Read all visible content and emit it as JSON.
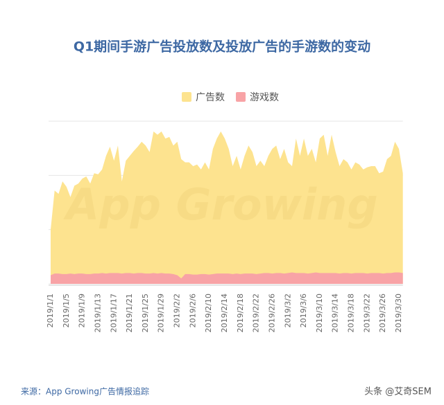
{
  "chart_data": {
    "type": "area",
    "title": "Q1期间手游广告投放数及投放广告的手游数的变动",
    "watermark": "App Growing",
    "source": "来源：App Growing广告情报追踪",
    "credit": "头条 @艾奇SEM",
    "categories": [
      "2019/1/1",
      null,
      null,
      null,
      "2019/1/5",
      null,
      null,
      null,
      "2019/1/9",
      null,
      null,
      null,
      "2019/1/13",
      null,
      null,
      null,
      "2019/1/17",
      null,
      null,
      null,
      "2019/1/21",
      null,
      null,
      null,
      "2019/1/25",
      null,
      null,
      null,
      "2019/1/29",
      null,
      null,
      null,
      "2019/2/2",
      null,
      null,
      null,
      "2019/2/6",
      null,
      null,
      null,
      "2019/2/10",
      null,
      null,
      null,
      "2019/2/14",
      null,
      null,
      null,
      "2019/2/18",
      null,
      null,
      null,
      "2019/2/22",
      null,
      null,
      null,
      "2019/2/26",
      null,
      null,
      null,
      "2019/3/2",
      null,
      null,
      null,
      "2019/3/6",
      null,
      null,
      null,
      "2019/3/10",
      null,
      null,
      null,
      "2019/3/14",
      null,
      null,
      null,
      "2019/3/18",
      null,
      null,
      null,
      "2019/3/22",
      null,
      null,
      null,
      "2019/3/26",
      null,
      null,
      null,
      "2019/3/30",
      null
    ],
    "series": [
      {
        "name": "广告数",
        "color": "#fde38f",
        "values": [
          100,
          172,
          166,
          189,
          179,
          160,
          181,
          185,
          194,
          198,
          185,
          204,
          202,
          211,
          236,
          253,
          227,
          255,
          189,
          227,
          236,
          245,
          253,
          262,
          255,
          243,
          281,
          275,
          281,
          268,
          271,
          255,
          262,
          230,
          224,
          224,
          217,
          220,
          211,
          224,
          211,
          249,
          268,
          281,
          268,
          249,
          217,
          236,
          211,
          236,
          255,
          243,
          217,
          227,
          217,
          236,
          249,
          255,
          230,
          249,
          224,
          217,
          268,
          236,
          268,
          236,
          249,
          224,
          268,
          275,
          236,
          275,
          243,
          217,
          230,
          224,
          211,
          224,
          220,
          211,
          215,
          217,
          217,
          204,
          207,
          230,
          236,
          262,
          249,
          204
        ]
      },
      {
        "name": "游戏数",
        "color": "#f8a3a6",
        "values": [
          16,
          19,
          19,
          18,
          18,
          19,
          18,
          19,
          19,
          18,
          18,
          19,
          19,
          20,
          19,
          20,
          20,
          20,
          19,
          20,
          20,
          19,
          20,
          20,
          19,
          19,
          20,
          19,
          20,
          19,
          19,
          18,
          16,
          10,
          18,
          18,
          17,
          17,
          18,
          18,
          17,
          18,
          19,
          19,
          19,
          19,
          18,
          19,
          18,
          19,
          19,
          19,
          18,
          19,
          20,
          20,
          19,
          20,
          20,
          19,
          20,
          21,
          20,
          20,
          20,
          19,
          20,
          21,
          20,
          20,
          20,
          20,
          20,
          19,
          20,
          20,
          19,
          20,
          20,
          20,
          19,
          20,
          20,
          20,
          19,
          20,
          20,
          21,
          21,
          20
        ]
      }
    ],
    "ylim": [
      0,
      300
    ],
    "yticks": [
      0,
      100,
      200,
      300
    ],
    "grid": true,
    "legend": "top"
  }
}
